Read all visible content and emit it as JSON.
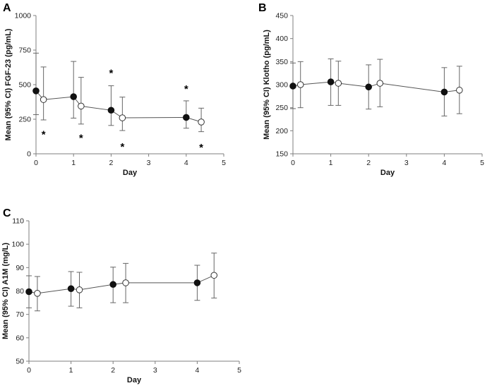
{
  "chart_data": [
    {
      "panel": "A",
      "type": "line",
      "title": "",
      "xlabel": "Day",
      "ylabel": "Mean (95% CI) FGF-23 (pg/mL)",
      "xlim": [
        0,
        5
      ],
      "ylim": [
        0,
        1000
      ],
      "xticks": [
        0,
        1,
        2,
        3,
        4,
        5
      ],
      "yticks": [
        0,
        250,
        500,
        750,
        1000
      ],
      "series": [
        {
          "name": "filled",
          "marker": "filled-circle",
          "x": [
            0,
            1,
            2,
            4
          ],
          "y": [
            455,
            413,
            315,
            263
          ],
          "lower": [
            283,
            258,
            205,
            185
          ],
          "upper": [
            728,
            668,
            492,
            383
          ]
        },
        {
          "name": "open",
          "marker": "open-circle",
          "x": [
            0.2,
            1.2,
            2.3,
            4.4
          ],
          "y": [
            392,
            345,
            260,
            230
          ],
          "lower": [
            245,
            215,
            168,
            160
          ],
          "upper": [
            628,
            553,
            410,
            330
          ]
        }
      ],
      "annotations": [
        {
          "text": "*",
          "x": 0.2,
          "y": 150
        },
        {
          "text": "*",
          "x": 1.2,
          "y": 125
        },
        {
          "text": "*",
          "x": 2.0,
          "y": 595
        },
        {
          "text": "*",
          "x": 2.3,
          "y": 60
        },
        {
          "text": "*",
          "x": 4.0,
          "y": 480
        },
        {
          "text": "*",
          "x": 4.4,
          "y": 55
        }
      ]
    },
    {
      "panel": "B",
      "type": "line",
      "title": "",
      "xlabel": "Day",
      "ylabel": "Mean (95% CI) Klotho (pg/mL)",
      "xlim": [
        0,
        5
      ],
      "ylim": [
        150,
        450
      ],
      "xticks": [
        0,
        1,
        2,
        3,
        4,
        5
      ],
      "yticks": [
        150,
        200,
        250,
        300,
        350,
        400,
        450
      ],
      "series": [
        {
          "name": "filled",
          "marker": "filled-circle",
          "x": [
            0,
            1,
            2,
            4
          ],
          "y": [
            297,
            306,
            295,
            284
          ],
          "lower": [
            248,
            255,
            247,
            232
          ],
          "upper": [
            347,
            356,
            343,
            337
          ]
        },
        {
          "name": "open",
          "marker": "open-circle",
          "x": [
            0.2,
            1.2,
            2.3,
            4.4
          ],
          "y": [
            300,
            303,
            303,
            288
          ],
          "lower": [
            250,
            255,
            252,
            237
          ],
          "upper": [
            350,
            351,
            355,
            340
          ]
        }
      ],
      "annotations": []
    },
    {
      "panel": "C",
      "type": "line",
      "title": "",
      "xlabel": "Day",
      "ylabel": "Mean (95% CI) A1M (mg/L)",
      "xlim": [
        0,
        5
      ],
      "ylim": [
        50,
        110
      ],
      "xticks": [
        0,
        1,
        2,
        3,
        4,
        5
      ],
      "yticks": [
        50,
        60,
        70,
        80,
        90,
        100,
        110
      ],
      "series": [
        {
          "name": "filled",
          "marker": "filled-circle",
          "x": [
            0,
            1,
            2,
            4
          ],
          "y": [
            79.7,
            81.0,
            82.8,
            83.5
          ],
          "lower": [
            72.8,
            73.5,
            75.0,
            76.0
          ],
          "upper": [
            86.5,
            88.3,
            90.2,
            91.0
          ]
        },
        {
          "name": "open",
          "marker": "open-circle",
          "x": [
            0.2,
            1.2,
            2.3,
            4.4
          ],
          "y": [
            79.0,
            80.5,
            83.5,
            86.7
          ],
          "lower": [
            71.5,
            72.8,
            75.0,
            77.0
          ],
          "upper": [
            86.2,
            88.0,
            91.8,
            96.2
          ]
        }
      ],
      "annotations": []
    }
  ]
}
